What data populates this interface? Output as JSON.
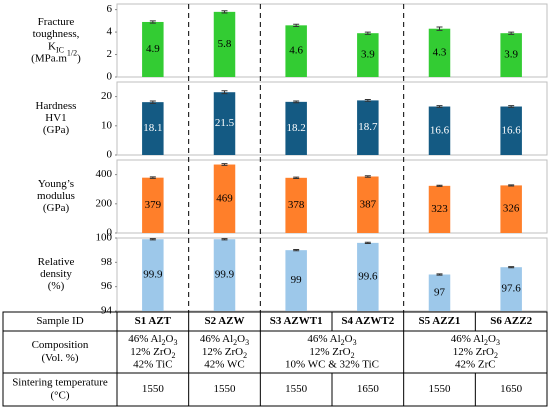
{
  "chart_data": [
    {
      "type": "bar",
      "ylabel": [
        "Fracture",
        "toughness,",
        [
          "K",
          {
            "sub": "IC"
          }
        ],
        [
          "(MPa.m",
          {
            "sup": "1/2"
          },
          ")"
        ]
      ],
      "values": [
        4.9,
        5.8,
        4.6,
        3.9,
        4.3,
        3.9
      ],
      "errors": [
        0.1,
        0.1,
        0.1,
        0.1,
        0.15,
        0.1
      ],
      "color": "#33cc33",
      "label_color": "#000000",
      "ylim": [
        0,
        6.5
      ],
      "yticks": [
        0,
        2,
        4,
        6
      ]
    },
    {
      "type": "bar",
      "ylabel": [
        "Hardness",
        "HV1",
        "(GPa)"
      ],
      "values": [
        18.1,
        21.5,
        18.2,
        18.7,
        16.6,
        16.6
      ],
      "errors": [
        0.4,
        0.5,
        0.3,
        0.3,
        0.3,
        0.3
      ],
      "color": "#145a83",
      "label_color": "#ffffff",
      "ylim": [
        0,
        25
      ],
      "yticks": [
        0,
        10,
        20
      ]
    },
    {
      "type": "bar",
      "ylabel": [
        "Young’s",
        "modulus",
        "(GPa)"
      ],
      "values": [
        379,
        469,
        378,
        387,
        323,
        326
      ],
      "errors": [
        5,
        6,
        5,
        5,
        4,
        4
      ],
      "color": "#ff7f2a",
      "label_color": "#000000",
      "ylim": [
        0,
        500
      ],
      "yticks": [
        0,
        200,
        400
      ]
    },
    {
      "type": "bar",
      "ylabel": [
        "Relative",
        "density",
        "(%)"
      ],
      "values": [
        99.9,
        99.9,
        99,
        99.6,
        97,
        97.6
      ],
      "errors": [
        0.05,
        0.05,
        0.05,
        0.05,
        0.05,
        0.05
      ],
      "color": "#9dc8ea",
      "label_color": "#000000",
      "ylim": [
        94,
        100
      ],
      "yticks": [
        94,
        96,
        98,
        100
      ]
    }
  ],
  "table": {
    "header": [
      "Sample ID",
      "S1 AZT",
      "S2 AZW",
      "S3 AZWT1",
      "S4 AZWT2",
      "S5 AZZ1",
      "S6 AZZ2"
    ],
    "composition": {
      "label": [
        "Composition",
        "(Vol. %)"
      ],
      "cells": [
        [
          [
            "46% Al",
            {
              "sub": "2"
            },
            "O",
            {
              "sub": "3"
            }
          ],
          [
            "12% ZrO",
            {
              "sub": "2"
            }
          ],
          "42% TiC"
        ],
        [
          [
            "46% Al",
            {
              "sub": "2"
            },
            "O",
            {
              "sub": "3"
            }
          ],
          [
            "12% ZrO",
            {
              "sub": "2"
            }
          ],
          "42% WC"
        ],
        [
          [
            "46% Al",
            {
              "sub": "2"
            },
            "O",
            {
              "sub": "3"
            }
          ],
          [
            "12% ZrO",
            {
              "sub": "2"
            }
          ],
          "10% WC & 32% TiC"
        ],
        [
          [
            "46% Al",
            {
              "sub": "2"
            },
            "O",
            {
              "sub": "3"
            }
          ],
          [
            "12% ZrO",
            {
              "sub": "2"
            }
          ],
          "42% ZrC"
        ]
      ]
    },
    "sintering": {
      "label": [
        "Sintering temperature",
        "(°C)"
      ],
      "cells": [
        "1550",
        "1550",
        "1550",
        "1650",
        "1550",
        "1650"
      ]
    }
  }
}
